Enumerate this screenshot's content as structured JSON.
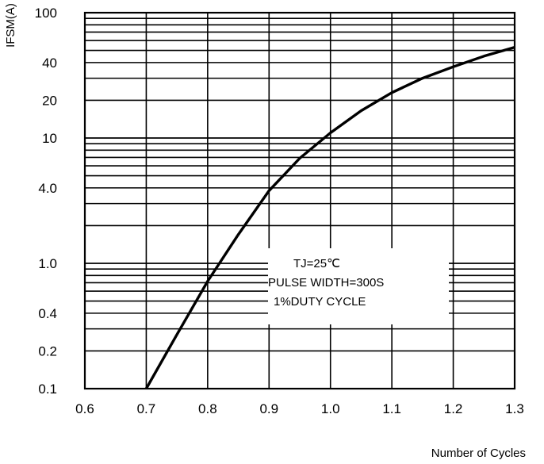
{
  "chart_data": {
    "type": "line",
    "title": "",
    "xlabel": "Number of Cycles",
    "ylabel": "IFSM(A)",
    "xlim": [
      0.6,
      1.3
    ],
    "ylim": [
      0.1,
      100
    ],
    "yscale": "log",
    "grid": true,
    "x_ticks": [
      "0.6",
      "0.7",
      "0.8",
      "0.9",
      "1.0",
      "1.1",
      "1.2",
      "1.3"
    ],
    "y_ticks": [
      {
        "value": 100,
        "label": "100"
      },
      {
        "value": 40,
        "label": "40"
      },
      {
        "value": 20,
        "label": "20"
      },
      {
        "value": 10,
        "label": "10"
      },
      {
        "value": 4,
        "label": "4.0"
      },
      {
        "value": 1,
        "label": "1.0"
      },
      {
        "value": 0.4,
        "label": "0.4"
      },
      {
        "value": 0.2,
        "label": "0.2"
      },
      {
        "value": 0.1,
        "label": "0.1"
      }
    ],
    "series": [
      {
        "name": "",
        "color": "#000000",
        "points": [
          [
            0.7,
            0.1
          ],
          [
            0.75,
            0.27
          ],
          [
            0.8,
            0.72
          ],
          [
            0.85,
            1.7
          ],
          [
            0.9,
            3.8
          ],
          [
            0.95,
            6.9
          ],
          [
            1.0,
            11.0
          ],
          [
            1.05,
            16.5
          ],
          [
            1.1,
            23.0
          ],
          [
            1.15,
            30.0
          ],
          [
            1.2,
            37.0
          ],
          [
            1.25,
            45.0
          ],
          [
            1.3,
            53.0
          ]
        ]
      }
    ],
    "annotation": [
      "TJ=25℃",
      "PULSE WIDTH=300S",
      "1%DUTY CYCLE"
    ]
  }
}
